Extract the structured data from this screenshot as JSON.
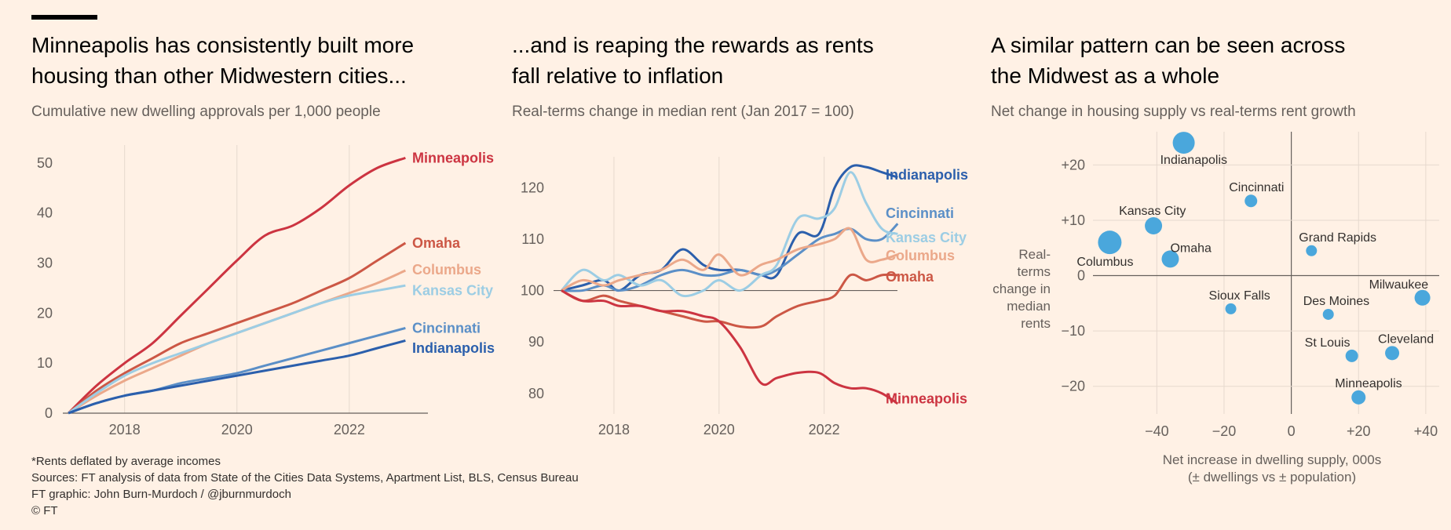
{
  "footer": {
    "note": "*Rents deflated by average incomes",
    "sources": "Sources: FT analysis of data from State of the Cities Data Systems, Apartment List, BLS, Census Bureau",
    "graphic": "FT graphic: John Burn-Murdoch / @jburnmurdoch",
    "copyright": "© FT"
  },
  "colors": {
    "Minneapolis": "#cc3441",
    "Omaha": "#cc5745",
    "Columbus": "#eba88a",
    "Kansas City": "#9ccde4",
    "Cincinnati": "#5b8fc7",
    "Indianapolis": "#2b5fac",
    "bubble": "#4aa7dc"
  },
  "chart_data": [
    {
      "type": "line",
      "title": "Minneapolis has consistently built more housing than other Midwestern cities...",
      "subtitle": "Cumulative new dwelling approvals per 1,000 people",
      "xlabel": "",
      "ylabel": "",
      "xlim": [
        2016.9,
        2023.4
      ],
      "ylim": [
        0,
        52
      ],
      "xticks": [
        2018,
        2020,
        2022
      ],
      "yticks": [
        0,
        10,
        20,
        30,
        40,
        50
      ],
      "grid": "vertical",
      "series": [
        {
          "name": "Minneapolis",
          "x": [
            2017,
            2017.5,
            2018,
            2018.5,
            2019,
            2019.5,
            2020,
            2020.5,
            2021,
            2021.5,
            2022,
            2022.5,
            2023
          ],
          "values": [
            0,
            5.5,
            10,
            14,
            19.5,
            25,
            30.5,
            35.5,
            37.5,
            41,
            45.5,
            49,
            51
          ]
        },
        {
          "name": "Omaha",
          "x": [
            2017,
            2017.5,
            2018,
            2018.5,
            2019,
            2019.5,
            2020,
            2020.5,
            2021,
            2021.5,
            2022,
            2022.5,
            2023
          ],
          "values": [
            0,
            4.5,
            8,
            11,
            14,
            16,
            18,
            20,
            22,
            24.5,
            27,
            30.5,
            34
          ]
        },
        {
          "name": "Columbus",
          "x": [
            2017,
            2017.5,
            2018,
            2018.5,
            2019,
            2019.5,
            2020,
            2020.5,
            2021,
            2021.5,
            2022,
            2022.5,
            2023
          ],
          "values": [
            0,
            3.5,
            6.5,
            9,
            11.5,
            14,
            16,
            18,
            20,
            22,
            24,
            26,
            28.5
          ]
        },
        {
          "name": "Kansas City",
          "x": [
            2017,
            2017.5,
            2018,
            2018.5,
            2019,
            2019.5,
            2020,
            2020.5,
            2021,
            2021.5,
            2022,
            2022.5,
            2023
          ],
          "values": [
            0,
            4,
            7.5,
            10,
            12,
            14,
            16,
            18,
            20,
            22,
            23.5,
            24.5,
            25.5
          ]
        },
        {
          "name": "Cincinnati",
          "x": [
            2017,
            2017.5,
            2018,
            2018.5,
            2019,
            2019.5,
            2020,
            2020.5,
            2021,
            2021.5,
            2022,
            2022.5,
            2023
          ],
          "values": [
            0,
            2,
            3.5,
            4.5,
            6,
            7,
            8,
            9.5,
            11,
            12.5,
            14,
            15.5,
            17
          ]
        },
        {
          "name": "Indianapolis",
          "x": [
            2017,
            2017.5,
            2018,
            2018.5,
            2019,
            2019.5,
            2020,
            2020.5,
            2021,
            2021.5,
            2022,
            2022.5,
            2023
          ],
          "values": [
            0,
            2,
            3.5,
            4.5,
            5.5,
            6.5,
            7.5,
            8.5,
            9.5,
            10.5,
            11.5,
            13,
            14.5
          ]
        }
      ]
    },
    {
      "type": "line",
      "title": "...and is reaping the rewards as rents fall relative to inflation",
      "subtitle": "Real-terms change in median rent (Jan 2017 = 100)",
      "xlabel": "",
      "ylabel": "",
      "xlim": [
        2016.85,
        2023.5
      ],
      "ylim": [
        76,
        126
      ],
      "xticks": [
        2018,
        2020,
        2022
      ],
      "yticks": [
        80,
        90,
        100,
        110,
        120
      ],
      "grid": "vertical",
      "baseline": 100,
      "series": [
        {
          "name": "Indianapolis",
          "x": [
            2017,
            2017.4,
            2017.8,
            2018.1,
            2018.5,
            2018.9,
            2019.3,
            2019.7,
            2020,
            2020.4,
            2020.8,
            2021.1,
            2021.5,
            2021.9,
            2022.2,
            2022.5,
            2022.8,
            2023.1,
            2023.4
          ],
          "values": [
            100,
            101,
            102,
            100,
            103,
            104,
            108,
            105,
            104,
            104,
            103,
            103,
            111,
            111,
            120,
            124,
            124,
            123,
            122
          ]
        },
        {
          "name": "Cincinnati",
          "x": [
            2017,
            2017.4,
            2017.8,
            2018.1,
            2018.5,
            2018.9,
            2019.3,
            2019.7,
            2020,
            2020.4,
            2020.8,
            2021.1,
            2021.5,
            2021.9,
            2022.2,
            2022.5,
            2022.8,
            2023.1,
            2023.4
          ],
          "values": [
            100,
            100,
            101,
            100,
            101,
            103,
            104,
            103,
            103,
            104,
            103,
            104,
            107,
            110,
            111,
            112,
            110,
            110,
            113
          ]
        },
        {
          "name": "Kansas City",
          "x": [
            2017,
            2017.4,
            2017.8,
            2018.1,
            2018.5,
            2018.9,
            2019.3,
            2019.7,
            2020,
            2020.4,
            2020.8,
            2021.1,
            2021.5,
            2021.9,
            2022.2,
            2022.5,
            2022.8,
            2023.1,
            2023.4
          ],
          "values": [
            100,
            104,
            102,
            103,
            101,
            102,
            99,
            100,
            102,
            100,
            103,
            105,
            114,
            114,
            116,
            123,
            117,
            112,
            111
          ]
        },
        {
          "name": "Columbus",
          "x": [
            2017,
            2017.4,
            2017.8,
            2018.1,
            2018.5,
            2018.9,
            2019.3,
            2019.7,
            2020,
            2020.4,
            2020.8,
            2021.1,
            2021.5,
            2021.9,
            2022.2,
            2022.5,
            2022.8,
            2023.1,
            2023.4
          ],
          "values": [
            100,
            102,
            101,
            102,
            103,
            104,
            106,
            104,
            107,
            103,
            105,
            106,
            108,
            109,
            110,
            112,
            106,
            106,
            107
          ]
        },
        {
          "name": "Omaha",
          "x": [
            2017,
            2017.4,
            2017.8,
            2018.1,
            2018.5,
            2018.9,
            2019.3,
            2019.7,
            2020,
            2020.4,
            2020.8,
            2021.1,
            2021.5,
            2021.9,
            2022.2,
            2022.5,
            2022.8,
            2023.1,
            2023.4
          ],
          "values": [
            100,
            98,
            99,
            98,
            97,
            96,
            95,
            94,
            94,
            93,
            93,
            95,
            97,
            98,
            99,
            103,
            102,
            103,
            103
          ]
        },
        {
          "name": "Minneapolis",
          "x": [
            2017,
            2017.4,
            2017.8,
            2018.1,
            2018.5,
            2018.9,
            2019.3,
            2019.7,
            2020,
            2020.4,
            2020.8,
            2021.1,
            2021.5,
            2021.9,
            2022.2,
            2022.5,
            2022.8,
            2023.1,
            2023.4
          ],
          "values": [
            100,
            98,
            98,
            97,
            97,
            96,
            96,
            95,
            94,
            89,
            82,
            83,
            84,
            84,
            82,
            81,
            81,
            80,
            78
          ]
        }
      ]
    },
    {
      "type": "scatter",
      "title": "A similar pattern can be seen across the Midwest as a whole",
      "subtitle": "Net change in housing supply vs real-terms rent growth",
      "xlabel": "Net increase in dwelling supply, 000s\n(± dwellings vs ± population)",
      "ylabel": "Real-terms change in median rents",
      "xlim": [
        -59,
        44
      ],
      "ylim": [
        -25,
        26
      ],
      "xticks": [
        -40,
        -20,
        0,
        20,
        40
      ],
      "xtick_labels": [
        "−40",
        "−20",
        "0",
        "+20",
        "+40"
      ],
      "yticks": [
        20,
        10,
        0,
        -10,
        -20
      ],
      "ytick_labels": [
        "+20",
        "+10",
        "0",
        "−10",
        "−20"
      ],
      "grid": "both",
      "points": [
        {
          "label": "Indianapolis",
          "x": -32,
          "y": 24,
          "size": 14
        },
        {
          "label": "Cincinnati",
          "x": -12,
          "y": 13.5,
          "size": 8
        },
        {
          "label": "Kansas City",
          "x": -41,
          "y": 9,
          "size": 11
        },
        {
          "label": "Columbus",
          "x": -54,
          "y": 6,
          "size": 15
        },
        {
          "label": "Omaha",
          "x": -36,
          "y": 3,
          "size": 11
        },
        {
          "label": "Grand Rapids",
          "x": 6,
          "y": 4.5,
          "size": 7
        },
        {
          "label": "Milwaukee",
          "x": 39,
          "y": -4,
          "size": 10
        },
        {
          "label": "Sioux Falls",
          "x": -18,
          "y": -6,
          "size": 7
        },
        {
          "label": "Des Moines",
          "x": 11,
          "y": -7,
          "size": 7
        },
        {
          "label": "St Louis",
          "x": 18,
          "y": -14.5,
          "size": 8
        },
        {
          "label": "Cleveland",
          "x": 30,
          "y": -14,
          "size": 9
        },
        {
          "label": "Minneapolis",
          "x": 20,
          "y": -22,
          "size": 9
        }
      ]
    }
  ]
}
